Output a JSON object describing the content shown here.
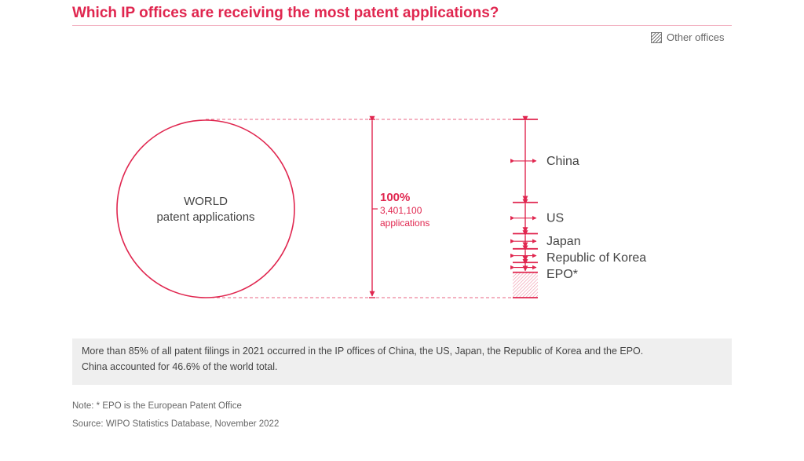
{
  "title": "Which IP offices are receiving the most patent applications?",
  "legend": {
    "label": "Other offices",
    "icon": "hatched-square-icon"
  },
  "colors": {
    "accent": "#e0264f",
    "text": "#444444",
    "muted": "#666666",
    "note_bg": "#efefef"
  },
  "chart_data": {
    "type": "bar",
    "circle_label": [
      "WORLD",
      "patent applications"
    ],
    "total": {
      "percent_label": "100%",
      "value_label": "3,401,100",
      "unit_label": "applications",
      "value": 3401100
    },
    "categories": [
      "China",
      "US",
      "Japan",
      "Republic of Korea",
      "EPO*",
      "Other offices"
    ],
    "values": [
      46.6,
      17.5,
      8.5,
      7.7,
      5.5,
      14.2
    ],
    "unit": "percent of world total"
  },
  "note": {
    "line1": "More than 85% of all patent filings in 2021 occurred in the IP offices of China, the US, Japan, the Republic of Korea and the EPO.",
    "line2": "China accounted for 46.6% of the world total."
  },
  "footnote": "Note: * EPO is the European Patent Office",
  "source": "Source: WIPO Statistics Database, November 2022"
}
